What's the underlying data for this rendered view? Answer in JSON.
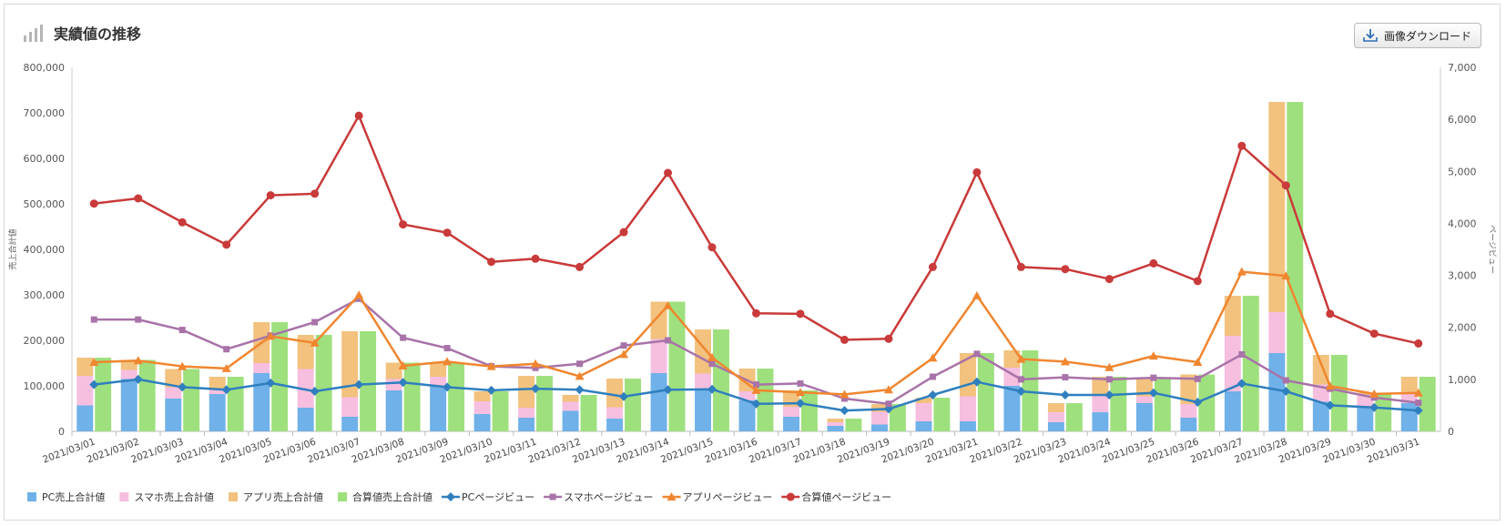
{
  "header": {
    "title": "実績値の推移",
    "download_label": "画像ダウンロード"
  },
  "colors": {
    "pc_bar": "#6fb1e8",
    "sp_bar": "#f6bfe0",
    "app_bar": "#f2c27e",
    "total_bar": "#9fe07e",
    "pc_line": "#2f7fbf",
    "sp_line": "#a873a8",
    "app_line": "#f0862f",
    "total_line": "#c93a3a"
  },
  "chart_data": {
    "type": "bar+line",
    "title": "実績値の推移",
    "categories": [
      "2021/03/01",
      "2021/03/02",
      "2021/03/03",
      "2021/03/04",
      "2021/03/05",
      "2021/03/06",
      "2021/03/07",
      "2021/03/08",
      "2021/03/09",
      "2021/03/10",
      "2021/03/11",
      "2021/03/12",
      "2021/03/13",
      "2021/03/14",
      "2021/03/15",
      "2021/03/16",
      "2021/03/17",
      "2021/03/18",
      "2021/03/19",
      "2021/03/20",
      "2021/03/21",
      "2021/03/22",
      "2021/03/23",
      "2021/03/24",
      "2021/03/25",
      "2021/03/26",
      "2021/03/27",
      "2021/03/28",
      "2021/03/29",
      "2021/03/30",
      "2021/03/31"
    ],
    "y_left": {
      "label": "売上合計値",
      "min": 0,
      "max": 800000,
      "ticks": [
        "0",
        "100,000",
        "200,000",
        "300,000",
        "400,000",
        "500,000",
        "600,000",
        "700,000",
        "800,000"
      ]
    },
    "y_right": {
      "label": "ページビュー",
      "min": 0,
      "max": 7000,
      "ticks": [
        "0",
        "1,000",
        "2,000",
        "3,000",
        "4,000",
        "5,000",
        "6,000",
        "7,000"
      ]
    },
    "bar_series": [
      {
        "name": "PC売上合計値",
        "values": [
          57000,
          115000,
          72000,
          82000,
          128000,
          52000,
          32000,
          90000,
          100000,
          38000,
          30000,
          45000,
          28000,
          128000,
          92000,
          68000,
          32000,
          12000,
          15000,
          22000,
          22000,
          100000,
          20000,
          42000,
          62000,
          30000,
          88000,
          172000,
          65000,
          55000,
          62000
        ]
      },
      {
        "name": "スマホ売上合計値",
        "values": [
          65000,
          20000,
          25000,
          10000,
          22000,
          85000,
          43000,
          25000,
          20000,
          28000,
          22000,
          20000,
          25000,
          75000,
          35000,
          20000,
          22000,
          8000,
          28000,
          40000,
          55000,
          40000,
          22000,
          40000,
          15000,
          30000,
          122000,
          90000,
          38000,
          25000,
          20000
        ]
      },
      {
        "name": "アプリ売上合計値",
        "values": [
          40000,
          22000,
          40000,
          28000,
          90000,
          75000,
          145000,
          36000,
          30000,
          22000,
          70000,
          15000,
          63000,
          82000,
          97000,
          50000,
          36000,
          8000,
          17000,
          12000,
          95000,
          38000,
          20000,
          38000,
          41000,
          65000,
          88000,
          462000,
          65000,
          5000,
          38000
        ]
      },
      {
        "name": "合算値売上合計値",
        "values": [
          162000,
          157000,
          137000,
          120000,
          240000,
          212000,
          220000,
          151000,
          150000,
          88000,
          122000,
          80000,
          116000,
          285000,
          224000,
          138000,
          90000,
          28000,
          60000,
          74000,
          172000,
          178000,
          62000,
          120000,
          118000,
          125000,
          298000,
          724000,
          168000,
          85000,
          120000
        ]
      }
    ],
    "line_series": [
      {
        "name": "PCページビュー",
        "values": [
          900,
          1000,
          850,
          800,
          930,
          770,
          900,
          940,
          850,
          790,
          820,
          800,
          670,
          800,
          810,
          530,
          540,
          400,
          430,
          700,
          950,
          770,
          700,
          700,
          740,
          560,
          920,
          770,
          500,
          460,
          400
        ]
      },
      {
        "name": "スマホページビュー",
        "values": [
          2150,
          2150,
          1950,
          1580,
          1840,
          2100,
          2550,
          1800,
          1600,
          1250,
          1220,
          1300,
          1650,
          1750,
          1300,
          900,
          920,
          630,
          530,
          1050,
          1490,
          1000,
          1040,
          1000,
          1030,
          1010,
          1480,
          980,
          820,
          650,
          550
        ]
      },
      {
        "name": "アプリページビュー",
        "values": [
          1330,
          1360,
          1250,
          1210,
          1830,
          1700,
          2620,
          1260,
          1340,
          1250,
          1300,
          1060,
          1480,
          2420,
          1420,
          790,
          750,
          710,
          800,
          1410,
          2610,
          1390,
          1340,
          1230,
          1450,
          1330,
          3070,
          2990,
          870,
          720,
          740
        ]
      },
      {
        "name": "合算値ページビュー",
        "values": [
          4380,
          4480,
          4020,
          3590,
          4540,
          4570,
          6070,
          3980,
          3820,
          3260,
          3320,
          3160,
          3830,
          4970,
          3540,
          2270,
          2260,
          1760,
          1780,
          3160,
          4980,
          3160,
          3120,
          2930,
          3230,
          2890,
          5490,
          4730,
          2260,
          1880,
          1690
        ]
      }
    ],
    "legend_position": "bottom-left",
    "grid": false
  }
}
